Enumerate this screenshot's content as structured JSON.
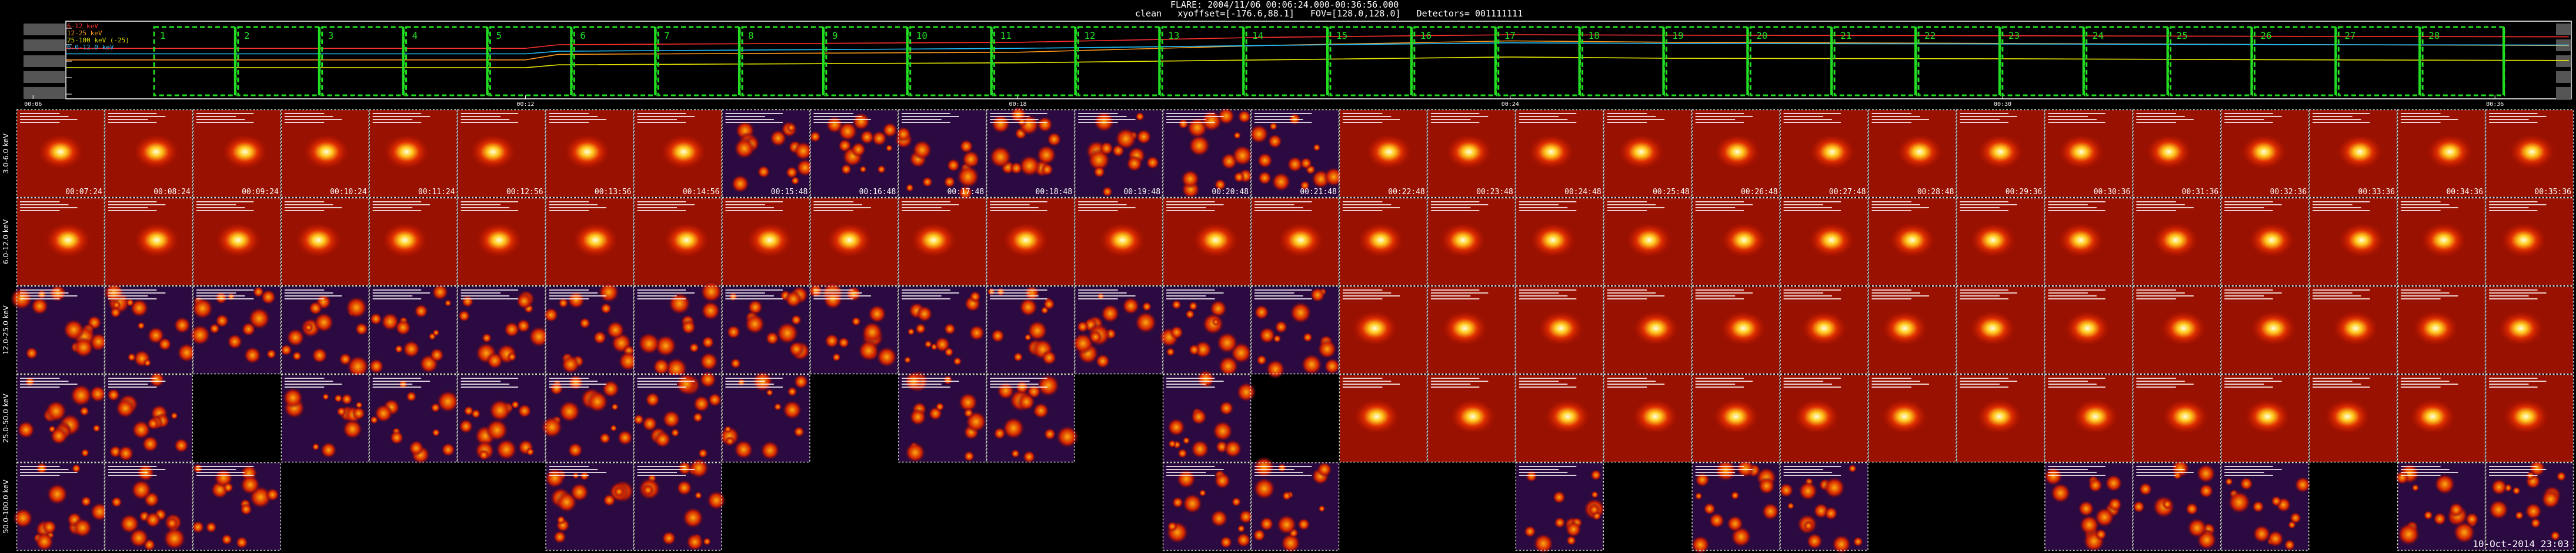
{
  "header": {
    "title": "FLARE: 2004/11/06 00:06:24.000-00:36:56.000",
    "params": "clean   xyoffset=[-176.6,88.1]   FOV=[128.0,128.0]   Detectors= 001111111"
  },
  "colors": {
    "background": "#000000",
    "panel_border": "#d8d8d8",
    "interval_box": "#22dd22",
    "band_colors": [
      "#ff3030",
      "#ff9a1e",
      "#e8e800",
      "#20c0ff",
      "#9090ff"
    ]
  },
  "chart_data": [
    {
      "type": "line",
      "title": "",
      "y_scale": "log",
      "y_ticks": [
        "10000",
        "1000",
        "100",
        "10",
        "1"
      ],
      "x_ticks": [
        "00:06",
        "00:12",
        "00:18",
        "00:24",
        "00:30",
        "00:36"
      ],
      "legend": [
        {
          "label": "6-12 keV",
          "color": "#ff3030"
        },
        {
          "label": "12-25 keV",
          "color": "#ff9a1e"
        },
        {
          "label": "25-100 keV (-25)",
          "color": "#e8e800"
        },
        {
          "label": "6.0-12.0 keV",
          "color": "#20c0ff"
        }
      ],
      "legend_placement": "top-left",
      "intervals": [
        "1",
        "2",
        "3",
        "4",
        "5",
        "6",
        "7",
        "8",
        "9",
        "10",
        "11",
        "12",
        "13",
        "14",
        "15",
        "16",
        "17",
        "18",
        "19",
        "20",
        "21",
        "22",
        "23",
        "24",
        "25",
        "26",
        "27",
        "28"
      ],
      "series": [
        {
          "name": "6-12 keV",
          "color": "#ff3030",
          "x": [
            6.4,
            12,
            12.4,
            18,
            21,
            24,
            26,
            30,
            34,
            36.9
          ],
          "y": [
            600,
            600,
            1000,
            1400,
            2800,
            4000,
            3800,
            3500,
            3200,
            3000
          ]
        },
        {
          "name": "12-25 keV",
          "color": "#ff9a1e",
          "x": [
            6.4,
            12,
            12.4,
            18,
            21,
            24,
            26,
            30,
            34,
            36.9
          ],
          "y": [
            120,
            120,
            260,
            350,
            900,
            1700,
            1400,
            1200,
            1000,
            900
          ]
        },
        {
          "name": "25-100 keV (-25)",
          "color": "#e8e800",
          "x": [
            6.4,
            12,
            12.4,
            18,
            21,
            24,
            26,
            30,
            34,
            36.9
          ],
          "y": [
            40,
            40,
            60,
            80,
            120,
            180,
            150,
            140,
            120,
            110
          ]
        },
        {
          "name": "6.0-12.0 keV",
          "color": "#20c0ff",
          "x": [
            6.4,
            12,
            12.4,
            18,
            21,
            24,
            26,
            30,
            34,
            36.9
          ],
          "y": [
            280,
            280,
            400,
            600,
            900,
            1300,
            1200,
            1100,
            1000,
            950
          ]
        }
      ]
    },
    {
      "type": "heatmap",
      "rows": [
        {
          "label": "3.0-6.0 keV"
        },
        {
          "label": "6.0-12.0 keV"
        },
        {
          "label": "12.0-25.0 keV"
        },
        {
          "label": "25.0-50.0 keV"
        },
        {
          "label": "50.0-100.0 keV"
        }
      ],
      "columns": [
        "00:07:24",
        "00:08:24",
        "00:09:24",
        "00:10:24",
        "00:11:24",
        "00:12:56",
        "00:13:56",
        "00:14:56",
        "00:15:48",
        "00:16:48",
        "00:17:48",
        "00:18:48",
        "00:19:48",
        "00:20:48",
        "00:21:48",
        "00:22:48",
        "00:23:48",
        "00:24:48",
        "00:25:48",
        "00:26:48",
        "00:27:48",
        "00:28:48",
        "00:29:36",
        "00:30:36",
        "00:31:36",
        "00:32:36",
        "00:33:36",
        "00:34:36",
        "00:35:36"
      ],
      "empty_cells": [
        [
          3,
          2
        ],
        [
          4,
          3
        ],
        [
          4,
          4
        ],
        [
          4,
          5
        ],
        [
          4,
          8
        ],
        [
          4,
          9
        ],
        [
          4,
          10
        ],
        [
          3,
          9
        ],
        [
          4,
          11
        ],
        [
          4,
          12
        ],
        [
          3,
          12
        ],
        [
          3,
          14
        ],
        [
          4,
          15
        ],
        [
          4,
          16
        ],
        [
          4,
          18
        ],
        [
          4,
          21
        ],
        [
          4,
          22
        ],
        [
          4,
          26
        ]
      ]
    }
  ],
  "footer": {
    "stamp": "10-Oct-2014 23:03"
  }
}
